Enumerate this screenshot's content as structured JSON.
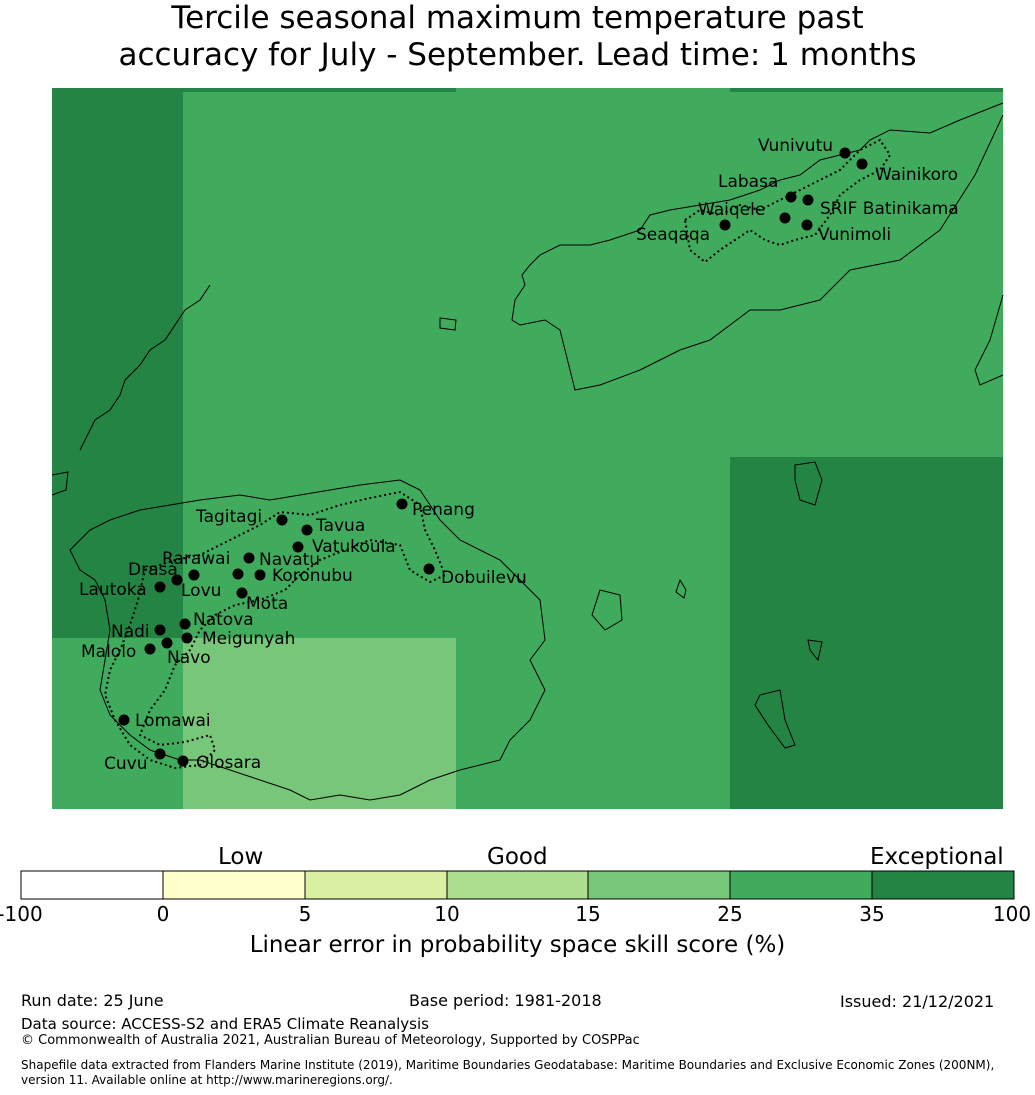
{
  "title_lines": [
    "Tercile seasonal maximum temperature past",
    "accuracy for July - September. Lead time: 1 months"
  ],
  "colors": {
    "c_15_25": "#78c679",
    "c_25_35": "#41ab5d",
    "c_35_100": "#238443"
  },
  "grid_cells": [
    {
      "level": "35-100"
    },
    {
      "level": "25-35"
    },
    {
      "level": "15-25"
    }
  ],
  "stations": [
    {
      "name": "Vunivutu"
    },
    {
      "name": "Wainikoro"
    },
    {
      "name": "Labasa"
    },
    {
      "name": "SRIF Batinikama"
    },
    {
      "name": "Waiqele"
    },
    {
      "name": "Seaqaqa"
    },
    {
      "name": "Vunimoli"
    },
    {
      "name": "Penang"
    },
    {
      "name": "Tagitagi"
    },
    {
      "name": "Tavua"
    },
    {
      "name": "Vatukoula"
    },
    {
      "name": "Rarawai"
    },
    {
      "name": "Navatu"
    },
    {
      "name": "Drasa"
    },
    {
      "name": "Koronubu"
    },
    {
      "name": "Dobuilevu"
    },
    {
      "name": "Lautoka"
    },
    {
      "name": "Lovu"
    },
    {
      "name": "Mota"
    },
    {
      "name": "Natova"
    },
    {
      "name": "Nadi"
    },
    {
      "name": "Meigunyah"
    },
    {
      "name": "Malolo"
    },
    {
      "name": "Navo"
    },
    {
      "name": "Lomawai"
    },
    {
      "name": "Cuvu"
    },
    {
      "name": "Olosara"
    }
  ],
  "colorbar": {
    "categories": [
      "Low",
      "Good",
      "Exceptional"
    ],
    "ticks": [
      "-100",
      "0",
      "5",
      "10",
      "15",
      "25",
      "35",
      "100"
    ],
    "colors": [
      "#ffffff",
      "#ffffcc",
      "#d9f0a3",
      "#addd8e",
      "#78c679",
      "#41ab5d",
      "#238443"
    ],
    "title": "Linear error in probability space skill score (%)"
  },
  "footer": {
    "run_date": "Run date: 25 June",
    "base_period": "Base period: 1981-2018",
    "issued": "Issued: 21/12/2021",
    "data_source": "Data source: ACCESS-S2 and ERA5 Climate Reanalysis",
    "copyright": "© Commonwealth of Australia 2021, Australian Bureau of Meteorology, Supported by COSPPac",
    "shapefile_line1": "Shapefile data extracted from Flanders Marine Institute (2019), Maritime Boundaries Geodatabase: Maritime Boundaries and Exclusive Economic Zones (200NM),",
    "shapefile_line2": "version 11. Available online at http://www.marineregions.org/."
  }
}
